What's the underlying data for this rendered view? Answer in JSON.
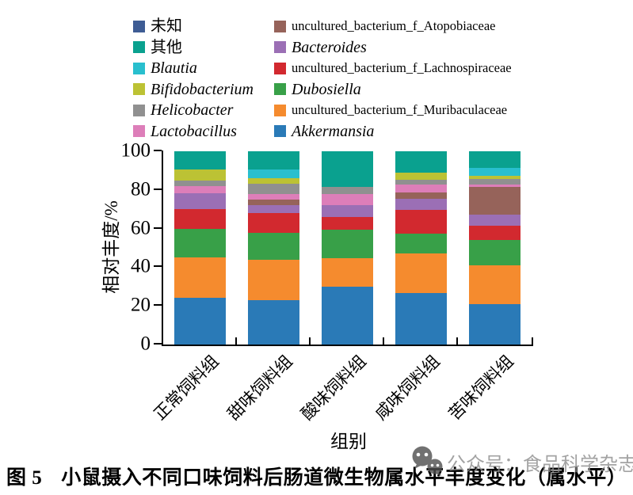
{
  "figure": {
    "caption_prefix": "图 5",
    "caption_text": "小鼠摄入不同口味饲料后肠道微生物属水平丰度变化（属水平）"
  },
  "watermark": {
    "icon": "wechat-icon",
    "text": "公众号：食品科学杂志",
    "color": "#8d8d8d"
  },
  "legend": {
    "items": [
      {
        "label": "未知",
        "color": "#3E5C94",
        "italic": false
      },
      {
        "label": "uncultured_bacterium_f_Atopobiaceae",
        "color": "#96635A",
        "italic": false
      },
      {
        "label": "其他",
        "color": "#0AA18F",
        "italic": false
      },
      {
        "label": "Bacteroides",
        "color": "#9B6FB5",
        "italic": true
      },
      {
        "label": "Blautia",
        "color": "#29BFCE",
        "italic": true
      },
      {
        "label": "uncultured_bacterium_f_Lachnospiraceae",
        "color": "#D2292F",
        "italic": false
      },
      {
        "label": "Bifidobacterium",
        "color": "#BCC234",
        "italic": true
      },
      {
        "label": "Dubosiella",
        "color": "#38A048",
        "italic": true
      },
      {
        "label": "Helicobacter",
        "color": "#909090",
        "italic": true
      },
      {
        "label": "uncultured_bacterium_f_Muribaculaceae",
        "color": "#F58B2E",
        "italic": false
      },
      {
        "label": "Lactobacillus",
        "color": "#DD7EB9",
        "italic": true
      },
      {
        "label": "Akkermansia",
        "color": "#2A7AB7",
        "italic": true
      }
    ]
  },
  "chart_data": {
    "type": "bar",
    "stacked": true,
    "stack_order": "bottom_to_top",
    "xlabel": "组别",
    "ylabel": "相对丰度/%",
    "ylim": [
      0,
      100
    ],
    "yticks": [
      0,
      20,
      40,
      60,
      80,
      100
    ],
    "grid": false,
    "legend_position": "top",
    "categories": [
      "正常饲料组",
      "甜味饲料组",
      "酸味饲料组",
      "咸味饲料组",
      "苦味饲料组"
    ],
    "series": [
      {
        "name": "Akkermansia",
        "color": "#2A7AB7",
        "values": [
          24,
          23,
          30,
          26.5,
          21
        ]
      },
      {
        "name": "uncultured_bacterium_f_Muribaculaceae",
        "color": "#F58B2E",
        "values": [
          21,
          21,
          14.5,
          20.5,
          20
        ]
      },
      {
        "name": "Dubosiella",
        "color": "#38A048",
        "values": [
          15,
          14,
          15,
          10.5,
          13
        ]
      },
      {
        "name": "uncultured_bacterium_f_Lachnospiraceae",
        "color": "#D2292F",
        "values": [
          10,
          10,
          6.5,
          12,
          7.5
        ]
      },
      {
        "name": "Bacteroides",
        "color": "#9B6FB5",
        "values": [
          8.5,
          4.3,
          6,
          6,
          5.7
        ]
      },
      {
        "name": "uncultured_bacterium_f_Atopobiaceae",
        "color": "#96635A",
        "values": [
          0,
          2.6,
          0,
          3.3,
          14.2
        ]
      },
      {
        "name": "Lactobacillus",
        "color": "#DD7EB9",
        "values": [
          3.5,
          3.2,
          6,
          4,
          1.6
        ]
      },
      {
        "name": "Helicobacter",
        "color": "#909090",
        "values": [
          3,
          5,
          3.5,
          2.6,
          2.5
        ]
      },
      {
        "name": "Bifidobacterium",
        "color": "#BCC234",
        "values": [
          5.5,
          3.1,
          0,
          3.4,
          2
        ]
      },
      {
        "name": "Blautia",
        "color": "#29BFCE",
        "values": [
          0,
          4.3,
          0,
          0,
          4
        ]
      },
      {
        "name": "其他",
        "color": "#0AA18F",
        "values": [
          9.5,
          9.5,
          18.5,
          11.2,
          8.5
        ]
      },
      {
        "name": "未知",
        "color": "#3E5C94",
        "values": [
          0,
          0,
          0,
          0,
          0
        ]
      }
    ]
  }
}
